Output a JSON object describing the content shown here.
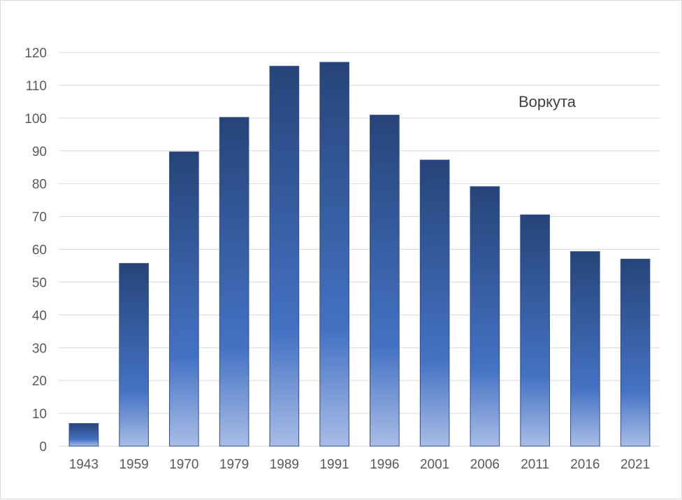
{
  "chart_data": {
    "type": "bar",
    "title": "Воркута",
    "xlabel": "",
    "ylabel": "",
    "categories": [
      "1943",
      "1959",
      "1970",
      "1979",
      "1989",
      "1991",
      "1996",
      "2001",
      "2006",
      "2011",
      "2016",
      "2021"
    ],
    "values": [
      6.9,
      55.7,
      89.7,
      100.2,
      115.8,
      117.0,
      100.9,
      87.2,
      79.1,
      70.5,
      59.3,
      57.0
    ],
    "ylim": [
      0,
      120
    ],
    "yticks": [
      "0",
      "10",
      "20",
      "30",
      "40",
      "50",
      "60",
      "70",
      "80",
      "90",
      "100",
      "110",
      "120"
    ],
    "grid": true,
    "legend": "none",
    "colors": {
      "bar_top": "#264478",
      "bar_mid": "#4472c4",
      "bar_bottom": "#a9bde6",
      "gridline": "#d9d9d9",
      "tick_text": "#595959",
      "title_text": "#404040"
    }
  }
}
